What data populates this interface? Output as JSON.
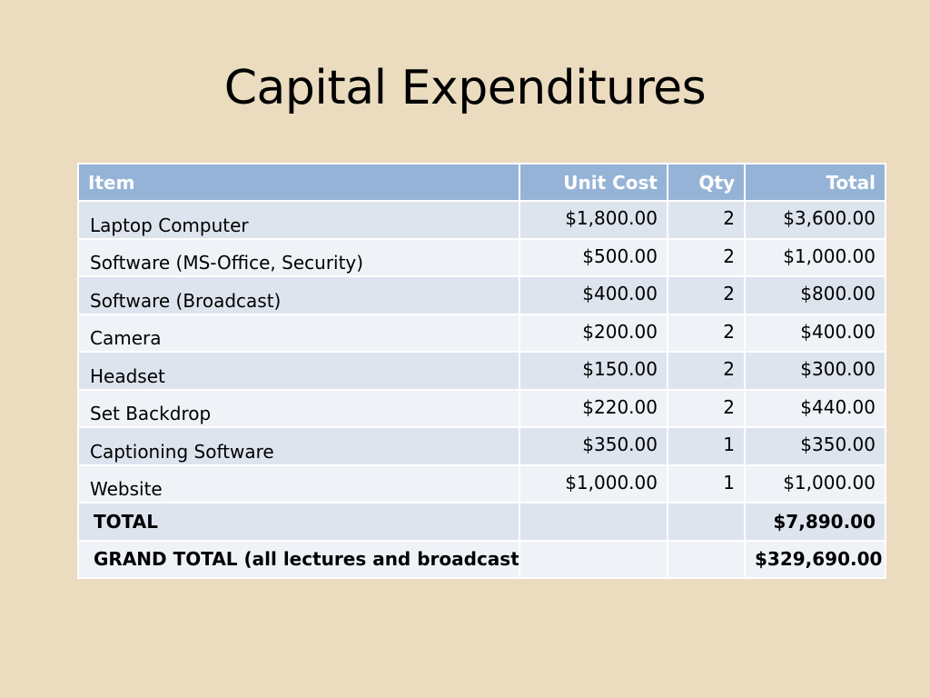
{
  "slide": {
    "title": "Capital Expenditures"
  },
  "table": {
    "headers": {
      "item": "Item",
      "unit_cost": "Unit Cost",
      "qty": "Qty",
      "total": "Total"
    },
    "rows": [
      {
        "item": "Laptop Computer",
        "unit_cost": "$1,800.00",
        "qty": "2",
        "total": "$3,600.00"
      },
      {
        "item": "Software (MS-Office, Security)",
        "unit_cost": "$500.00",
        "qty": "2",
        "total": "$1,000.00"
      },
      {
        "item": "Software (Broadcast)",
        "unit_cost": "$400.00",
        "qty": "2",
        "total": "$800.00"
      },
      {
        "item": "Camera",
        "unit_cost": "$200.00",
        "qty": "2",
        "total": "$400.00"
      },
      {
        "item": "Headset",
        "unit_cost": "$150.00",
        "qty": "2",
        "total": "$300.00"
      },
      {
        "item": "Set Backdrop",
        "unit_cost": "$220.00",
        "qty": "2",
        "total": "$440.00"
      },
      {
        "item": "Captioning Software",
        "unit_cost": "$350.00",
        "qty": "1",
        "total": "$350.00"
      },
      {
        "item": "Website",
        "unit_cost": "$1,000.00",
        "qty": "1",
        "total": "$1,000.00"
      }
    ],
    "total_row": {
      "label": "TOTAL",
      "unit_cost": "",
      "qty": "",
      "total": "$7,890.00"
    },
    "grand_total_row": {
      "label": "GRAND TOTAL (all lectures and broadcasts)",
      "unit_cost": "",
      "qty": "",
      "total": "$329,690.00"
    }
  },
  "colors": {
    "background": "#ebdcc0",
    "header": "#95b3d6",
    "row_band_dark": "#dde4ee",
    "row_band_light": "#eff2f7"
  }
}
